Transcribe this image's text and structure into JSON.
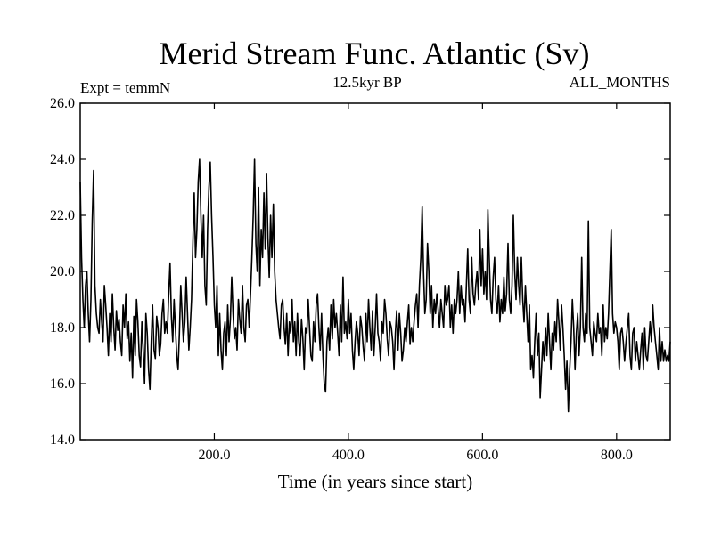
{
  "chart_data": {
    "type": "line",
    "title": "Merid Stream Func. Atlantic (Sv)",
    "header_left": "Expt = temmN",
    "header_center": "12.5kyr BP",
    "header_right": "ALL_MONTHS",
    "xlabel": "Time (in years since start)",
    "ylabel": "",
    "xlim": [
      0,
      880
    ],
    "ylim": [
      14.0,
      26.0
    ],
    "x_ticks": [
      200,
      400,
      600,
      800
    ],
    "x_tick_labels": [
      "200.0",
      "400.0",
      "600.0",
      "800.0"
    ],
    "y_ticks": [
      14,
      16,
      18,
      20,
      22,
      24,
      26
    ],
    "y_tick_labels": [
      "14.0",
      "16.0",
      "18.0",
      "20.0",
      "22.0",
      "24.0",
      "26.0"
    ],
    "grid": false,
    "legend": "none",
    "line_color": "#000000",
    "series": [
      {
        "x_start": 0,
        "x_step": 2,
        "values": [
          23.2,
          20.5,
          19.0,
          18.0,
          19.5,
          20.0,
          18.5,
          17.5,
          19.0,
          21.8,
          23.6,
          19.5,
          18.5,
          18.0,
          17.8,
          19.0,
          18.2,
          17.5,
          19.5,
          18.8,
          18.0,
          17.0,
          18.5,
          17.5,
          19.2,
          18.0,
          17.2,
          18.6,
          17.9,
          18.3,
          17.5,
          17.0,
          18.8,
          18.0,
          19.2,
          17.6,
          18.2,
          16.8,
          17.8,
          16.2,
          18.4,
          17.0,
          19.0,
          18.2,
          17.0,
          16.6,
          18.2,
          17.2,
          16.0,
          18.5,
          17.8,
          16.5,
          15.8,
          17.5,
          18.8,
          17.2,
          16.9,
          18.4,
          18.0,
          17.0,
          17.4,
          18.5,
          19.0,
          17.8,
          18.2,
          17.8,
          19.2,
          20.3,
          18.4,
          17.5,
          19.0,
          18.0,
          17.0,
          16.5,
          17.8,
          19.5,
          18.5,
          17.5,
          18.2,
          19.8,
          18.5,
          17.2,
          18.0,
          19.0,
          21.0,
          22.8,
          20.5,
          21.5,
          23.2,
          24.0,
          22.0,
          20.5,
          22.0,
          19.5,
          18.8,
          21.5,
          23.0,
          23.9,
          22.0,
          20.5,
          18.8,
          18.0,
          19.5,
          17.0,
          18.5,
          17.2,
          16.5,
          17.8,
          18.2,
          17.0,
          18.8,
          17.5,
          18.3,
          19.8,
          18.5,
          17.6,
          18.0,
          17.2,
          19.0,
          18.3,
          17.8,
          19.5,
          18.0,
          17.5,
          18.8,
          19.0,
          18.0,
          19.2,
          20.5,
          22.0,
          24.0,
          21.0,
          20.0,
          23.0,
          19.5,
          21.5,
          20.5,
          22.8,
          20.8,
          23.5,
          21.2,
          19.8,
          22.0,
          20.5,
          22.4,
          20.0,
          19.0,
          18.5,
          18.0,
          17.6,
          18.8,
          19.0,
          18.0,
          17.4,
          18.5,
          17.0,
          18.2,
          17.8,
          19.0,
          17.5,
          18.2,
          17.0,
          18.5,
          17.5,
          17.0,
          18.3,
          17.6,
          16.5,
          18.0,
          17.8,
          19.0,
          18.0,
          17.0,
          16.8,
          18.2,
          17.5,
          18.8,
          19.2,
          18.0,
          17.2,
          18.5,
          17.0,
          16.0,
          15.7,
          17.5,
          18.0,
          17.2,
          18.8,
          17.6,
          19.0,
          18.0,
          18.5,
          17.8,
          17.0,
          18.8,
          17.5,
          19.8,
          17.8,
          18.2,
          17.6,
          19.0,
          17.8,
          18.5,
          17.2,
          16.5,
          17.5,
          18.2,
          17.8,
          17.0,
          18.4,
          18.0,
          17.3,
          16.8,
          18.5,
          17.5,
          19.0,
          18.0,
          17.2,
          18.6,
          17.0,
          18.0,
          19.2,
          17.8,
          17.5,
          16.8,
          18.2,
          17.8,
          19.0,
          18.5,
          17.6,
          17.0,
          18.2,
          18.0,
          17.5,
          16.5,
          17.8,
          18.6,
          17.2,
          18.5,
          17.8,
          16.8,
          17.2,
          18.0,
          17.5,
          18.2,
          18.8,
          17.4,
          18.0,
          17.5,
          18.2,
          18.8,
          19.2,
          18.0,
          19.5,
          20.5,
          22.3,
          20.0,
          18.5,
          19.0,
          21.0,
          20.0,
          18.5,
          19.5,
          18.0,
          19.0,
          18.5,
          19.2,
          18.6,
          18.0,
          19.0,
          18.5,
          18.0,
          19.5,
          18.8,
          19.0,
          19.5,
          18.0,
          18.8,
          17.8,
          19.0,
          18.5,
          19.0,
          20.0,
          18.5,
          19.5,
          18.8,
          19.0,
          18.2,
          19.5,
          20.8,
          19.0,
          18.5,
          20.5,
          19.2,
          18.8,
          19.5,
          20.0,
          19.0,
          21.5,
          19.5,
          20.8,
          19.2,
          20.0,
          19.0,
          22.2,
          20.5,
          19.0,
          18.5,
          19.8,
          20.5,
          19.0,
          18.5,
          19.5,
          18.2,
          19.0,
          18.5,
          19.8,
          18.6,
          19.2,
          21.0,
          19.0,
          18.5,
          19.5,
          22.0,
          20.0,
          19.0,
          20.5,
          19.5,
          18.8,
          20.5,
          19.0,
          18.2,
          19.5,
          18.5,
          17.5,
          18.8,
          16.5,
          17.0,
          16.2,
          17.5,
          18.5,
          17.0,
          17.8,
          15.5,
          16.5,
          17.5,
          16.8,
          18.0,
          17.0,
          18.5,
          17.5,
          16.5,
          17.8,
          17.2,
          18.2,
          17.5,
          19.0,
          18.2,
          17.2,
          18.8,
          18.0,
          17.0,
          15.8,
          16.8,
          15.0,
          16.5,
          17.5,
          19.0,
          18.0,
          16.5,
          17.8,
          18.5,
          17.0,
          18.0,
          20.5,
          18.0,
          17.5,
          18.5,
          17.8,
          21.8,
          18.0,
          17.5,
          17.0,
          18.2,
          17.8,
          17.5,
          18.5,
          17.8,
          18.0,
          17.0,
          18.8,
          17.5,
          18.0,
          17.6,
          18.5,
          20.0,
          21.5,
          18.5,
          17.8,
          18.2,
          18.0,
          17.5,
          16.5,
          17.8,
          18.0,
          17.5,
          16.8,
          17.5,
          18.0,
          18.5,
          17.0,
          16.5,
          17.8,
          18.0,
          16.8,
          17.5,
          17.0,
          16.5,
          17.2,
          17.8,
          16.5,
          18.0,
          17.0,
          16.8,
          17.5,
          18.2,
          17.5,
          18.8,
          18.0,
          17.5,
          17.0,
          16.5,
          18.0,
          16.8,
          17.5,
          16.8,
          17.2,
          16.8,
          17.0,
          16.8,
          17.5
        ]
      }
    ]
  }
}
